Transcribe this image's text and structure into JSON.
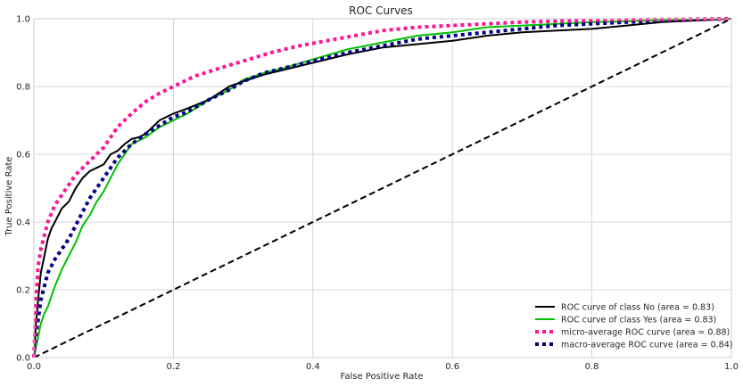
{
  "chart_data": {
    "type": "line",
    "title": "ROC Curves",
    "xlabel": "False Positive Rate",
    "ylabel": "True Positive Rate",
    "xlim": [
      0,
      1
    ],
    "ylim": [
      0,
      1
    ],
    "xticks": [
      "0.0",
      "0.2",
      "0.4",
      "0.6",
      "0.8",
      "1.0"
    ],
    "yticks": [
      "0.0",
      "0.2",
      "0.4",
      "0.6",
      "0.8",
      "1.0"
    ],
    "grid": true,
    "legend_position": "bottom-right",
    "series": [
      {
        "name": "ROC curve of class No (area = 0.83)",
        "color": "#000000",
        "style": "solid",
        "x": [
          0,
          0.003,
          0.006,
          0.01,
          0.015,
          0.02,
          0.025,
          0.03,
          0.04,
          0.05,
          0.06,
          0.07,
          0.08,
          0.09,
          0.1,
          0.11,
          0.12,
          0.13,
          0.14,
          0.15,
          0.16,
          0.18,
          0.2,
          0.22,
          0.25,
          0.28,
          0.3,
          0.33,
          0.36,
          0.4,
          0.45,
          0.5,
          0.55,
          0.6,
          0.65,
          0.7,
          0.75,
          0.8,
          0.85,
          0.9,
          0.95,
          1.0
        ],
        "y": [
          0,
          0.1,
          0.17,
          0.25,
          0.3,
          0.35,
          0.38,
          0.4,
          0.44,
          0.46,
          0.5,
          0.53,
          0.55,
          0.56,
          0.57,
          0.6,
          0.61,
          0.63,
          0.645,
          0.65,
          0.66,
          0.7,
          0.72,
          0.735,
          0.76,
          0.8,
          0.815,
          0.835,
          0.85,
          0.87,
          0.895,
          0.915,
          0.925,
          0.935,
          0.95,
          0.96,
          0.965,
          0.97,
          0.98,
          0.99,
          0.995,
          1.0
        ]
      },
      {
        "name": "ROC curve of class Yes (area = 0.83)",
        "color": "#00c000",
        "style": "solid",
        "x": [
          0,
          0.003,
          0.006,
          0.01,
          0.015,
          0.02,
          0.03,
          0.04,
          0.05,
          0.06,
          0.07,
          0.08,
          0.09,
          0.1,
          0.11,
          0.12,
          0.13,
          0.14,
          0.15,
          0.16,
          0.17,
          0.18,
          0.2,
          0.22,
          0.25,
          0.28,
          0.3,
          0.33,
          0.36,
          0.4,
          0.45,
          0.5,
          0.55,
          0.6,
          0.65,
          0.7,
          0.75,
          0.8,
          0.85,
          0.9,
          0.95,
          1.0
        ],
        "y": [
          0,
          0.03,
          0.06,
          0.1,
          0.13,
          0.15,
          0.21,
          0.26,
          0.3,
          0.34,
          0.39,
          0.42,
          0.46,
          0.49,
          0.53,
          0.57,
          0.6,
          0.63,
          0.64,
          0.65,
          0.665,
          0.68,
          0.7,
          0.72,
          0.76,
          0.79,
          0.82,
          0.84,
          0.855,
          0.88,
          0.91,
          0.93,
          0.95,
          0.96,
          0.975,
          0.98,
          0.985,
          0.99,
          0.993,
          0.996,
          0.998,
          1.0
        ]
      },
      {
        "name": "micro-average ROC curve (area = 0.88)",
        "color": "#ff1493",
        "style": "dotted",
        "x": [
          0,
          0.003,
          0.006,
          0.01,
          0.015,
          0.02,
          0.03,
          0.04,
          0.05,
          0.06,
          0.08,
          0.1,
          0.12,
          0.14,
          0.16,
          0.18,
          0.2,
          0.23,
          0.26,
          0.3,
          0.34,
          0.38,
          0.42,
          0.46,
          0.5,
          0.55,
          0.6,
          0.65,
          0.7,
          0.75,
          0.8,
          0.85,
          0.9,
          0.95,
          1.0
        ],
        "y": [
          0,
          0.16,
          0.27,
          0.32,
          0.36,
          0.4,
          0.45,
          0.48,
          0.51,
          0.54,
          0.58,
          0.62,
          0.68,
          0.72,
          0.755,
          0.78,
          0.8,
          0.83,
          0.85,
          0.875,
          0.9,
          0.92,
          0.935,
          0.95,
          0.965,
          0.975,
          0.98,
          0.985,
          0.99,
          0.993,
          0.995,
          0.997,
          0.998,
          0.999,
          1.0
        ]
      },
      {
        "name": "macro-average ROC curve (area = 0.84)",
        "color": "#000080",
        "style": "dotted",
        "x": [
          0,
          0.003,
          0.006,
          0.01,
          0.015,
          0.02,
          0.03,
          0.04,
          0.05,
          0.06,
          0.07,
          0.08,
          0.09,
          0.1,
          0.11,
          0.12,
          0.13,
          0.14,
          0.16,
          0.18,
          0.2,
          0.22,
          0.25,
          0.28,
          0.3,
          0.33,
          0.36,
          0.4,
          0.45,
          0.5,
          0.55,
          0.6,
          0.65,
          0.7,
          0.75,
          0.8,
          0.85,
          0.9,
          0.95,
          1.0
        ],
        "y": [
          0,
          0.07,
          0.11,
          0.17,
          0.21,
          0.25,
          0.29,
          0.32,
          0.35,
          0.39,
          0.43,
          0.47,
          0.5,
          0.53,
          0.56,
          0.59,
          0.61,
          0.63,
          0.66,
          0.685,
          0.71,
          0.725,
          0.76,
          0.79,
          0.815,
          0.84,
          0.855,
          0.875,
          0.9,
          0.92,
          0.94,
          0.95,
          0.96,
          0.97,
          0.98,
          0.985,
          0.99,
          0.994,
          0.997,
          1.0
        ]
      },
      {
        "name": "chance",
        "color": "#000000",
        "style": "dashed",
        "x": [
          0,
          1
        ],
        "y": [
          0,
          1
        ]
      }
    ],
    "legend": [
      "ROC curve of class No (area = 0.83)",
      "ROC curve of class Yes (area = 0.83)",
      "micro-average ROC curve (area = 0.88)",
      "macro-average ROC curve (area = 0.84)"
    ]
  }
}
